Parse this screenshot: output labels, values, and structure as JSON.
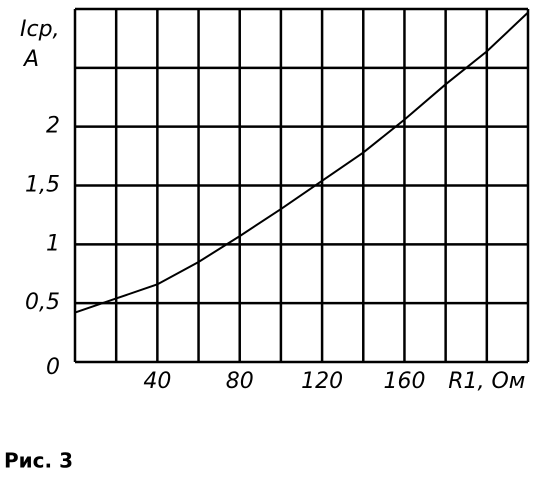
{
  "chart_data": {
    "type": "line",
    "ylabel": [
      "Iср,",
      "A"
    ],
    "xlabel": "R1, Ом",
    "caption": "Рис. 3",
    "x": [
      0,
      20,
      40,
      60,
      80,
      100,
      120,
      140,
      160,
      180,
      200,
      220
    ],
    "series": [
      {
        "color": "#000000",
        "values": [
          0.42,
          0.54,
          0.66,
          0.85,
          1.07,
          1.3,
          1.54,
          1.78,
          2.06,
          2.36,
          2.64,
          2.97
        ]
      }
    ],
    "xlim": [
      0,
      220
    ],
    "xticks": [
      40,
      80,
      120,
      160
    ],
    "xgrid": [
      0,
      20,
      40,
      60,
      80,
      100,
      120,
      140,
      160,
      180,
      200,
      220
    ],
    "ylim": [
      0,
      3
    ],
    "yticks": [
      0,
      {
        "value": 0.5,
        "label": "0,5"
      },
      1,
      {
        "value": 1.5,
        "label": "1,5"
      },
      2
    ],
    "ygrid": [
      0,
      0.5,
      1,
      1.5,
      2,
      2.5,
      3
    ],
    "grid": true
  }
}
